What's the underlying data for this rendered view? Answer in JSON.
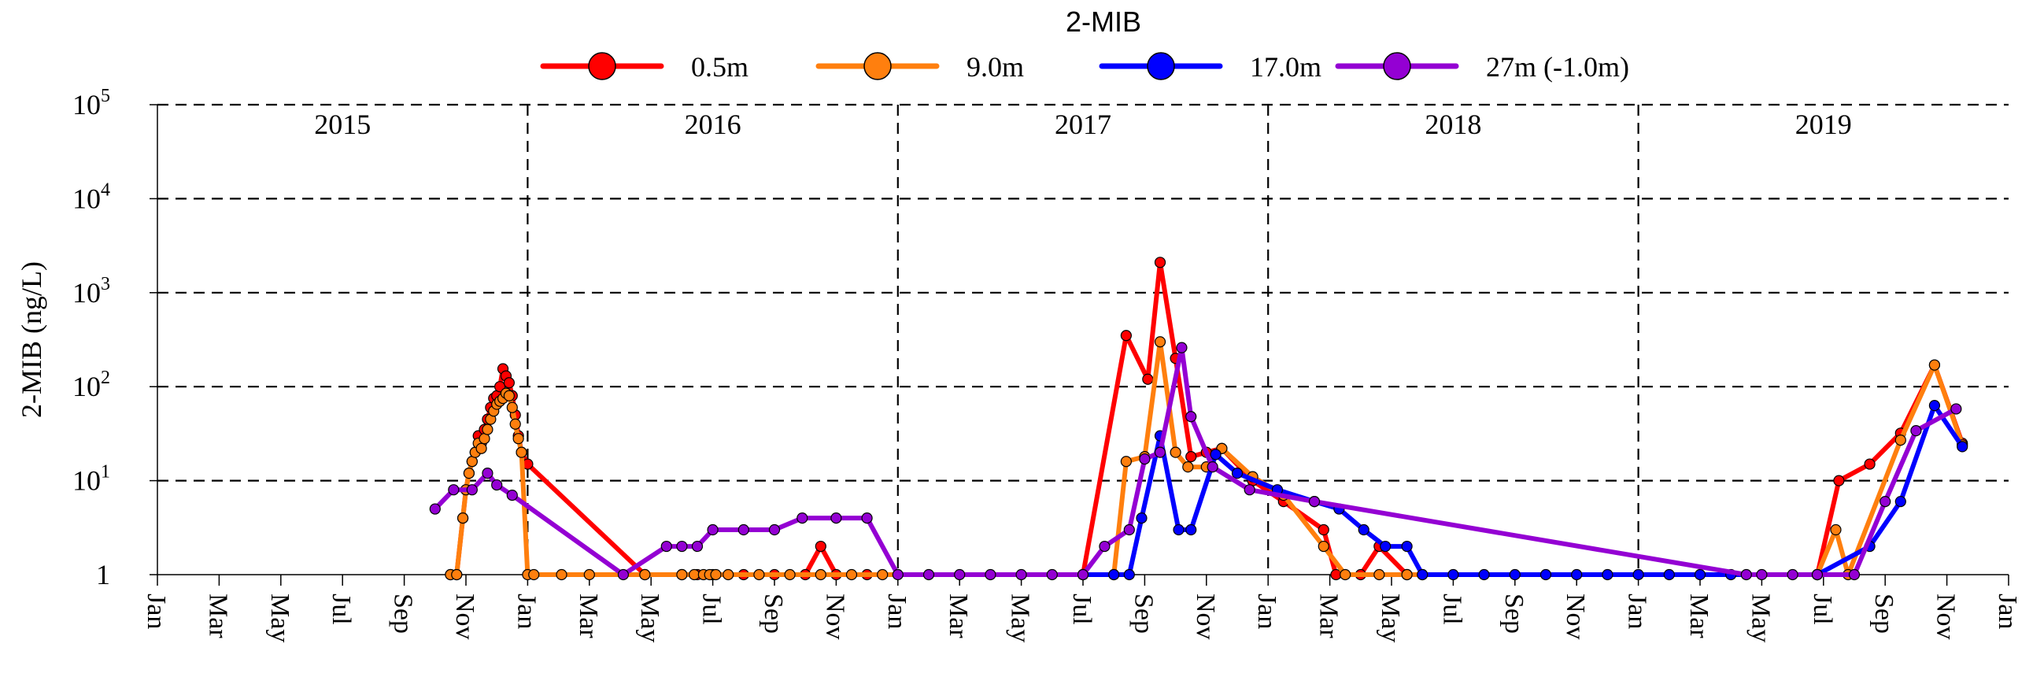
{
  "chart_data": {
    "type": "line",
    "title": "2-MIB",
    "xlabel": "",
    "ylabel": "2-MIB (ng/L)",
    "yscale": "log",
    "ylim": [
      1,
      100000
    ],
    "xlim_months": [
      0,
      60
    ],
    "x_unit": "months since Jan 2015",
    "y_ticks": [
      {
        "value": 1,
        "base": "1",
        "exp": ""
      },
      {
        "value": 10,
        "base": "10",
        "exp": "1"
      },
      {
        "value": 100,
        "base": "10",
        "exp": "2"
      },
      {
        "value": 1000,
        "base": "10",
        "exp": "3"
      },
      {
        "value": 10000,
        "base": "10",
        "exp": "4"
      },
      {
        "value": 100000,
        "base": "10",
        "exp": "5"
      }
    ],
    "x_tick_labels": [
      "Jan",
      "Mar",
      "May",
      "Jul",
      "Sep",
      "Nov",
      "Jan",
      "Mar",
      "May",
      "Jul",
      "Sep",
      "Nov",
      "Jan",
      "Mar",
      "May",
      "Jul",
      "Sep",
      "Nov",
      "Jan",
      "Mar",
      "May",
      "Jul",
      "Sep",
      "Nov",
      "Jan",
      "Mar",
      "May",
      "Jul",
      "Sep",
      "Nov",
      "Jan"
    ],
    "year_labels": [
      "2015",
      "2016",
      "2017",
      "2018",
      "2019"
    ],
    "year_boundaries": [
      12,
      24,
      36,
      48
    ],
    "grid": "dashed horizontal at decades, dashed vertical at year boundaries",
    "legend_position": "top-center",
    "series": [
      {
        "name": "0.5m",
        "color": "#ff0000",
        "points": [
          [
            9.5,
            1
          ],
          [
            9.7,
            1
          ],
          [
            9.9,
            4
          ],
          [
            10.0,
            8
          ],
          [
            10.1,
            12
          ],
          [
            10.2,
            16
          ],
          [
            10.3,
            20
          ],
          [
            10.4,
            30
          ],
          [
            10.5,
            25
          ],
          [
            10.6,
            35
          ],
          [
            10.7,
            45
          ],
          [
            10.8,
            60
          ],
          [
            10.9,
            75
          ],
          [
            11.0,
            80
          ],
          [
            11.1,
            100
          ],
          [
            11.2,
            155
          ],
          [
            11.3,
            130
          ],
          [
            11.4,
            110
          ],
          [
            11.5,
            80
          ],
          [
            11.6,
            50
          ],
          [
            11.7,
            30
          ],
          [
            11.8,
            20
          ],
          [
            12.0,
            15
          ],
          [
            15.8,
            1
          ],
          [
            17.0,
            1
          ],
          [
            17.5,
            1
          ],
          [
            18.0,
            1
          ],
          [
            19.0,
            1
          ],
          [
            20.0,
            1
          ],
          [
            21.0,
            1
          ],
          [
            21.5,
            2
          ],
          [
            22.0,
            1
          ],
          [
            23.0,
            1
          ],
          [
            30.0,
            1
          ],
          [
            31.4,
            350
          ],
          [
            32.1,
            120
          ],
          [
            32.5,
            2100
          ],
          [
            33.0,
            200
          ],
          [
            33.5,
            18
          ],
          [
            34.0,
            20
          ],
          [
            34.5,
            22
          ],
          [
            35.5,
            10
          ],
          [
            36.5,
            6
          ],
          [
            37.8,
            3
          ],
          [
            38.2,
            1
          ],
          [
            39.0,
            1
          ],
          [
            39.6,
            2
          ],
          [
            40.5,
            1
          ],
          [
            41.0,
            1
          ],
          [
            53.8,
            1
          ],
          [
            54.5,
            10
          ],
          [
            55.5,
            15
          ],
          [
            56.5,
            32
          ],
          [
            57.6,
            170
          ],
          [
            58.5,
            25
          ]
        ]
      },
      {
        "name": "9.0m",
        "color": "#ff7f0e",
        "points": [
          [
            9.5,
            1
          ],
          [
            9.7,
            1
          ],
          [
            9.9,
            4
          ],
          [
            10.0,
            8
          ],
          [
            10.1,
            12
          ],
          [
            10.2,
            16
          ],
          [
            10.3,
            20
          ],
          [
            10.4,
            25
          ],
          [
            10.5,
            22
          ],
          [
            10.6,
            28
          ],
          [
            10.7,
            35
          ],
          [
            10.8,
            45
          ],
          [
            10.9,
            55
          ],
          [
            11.0,
            65
          ],
          [
            11.1,
            70
          ],
          [
            11.2,
            75
          ],
          [
            11.3,
            85
          ],
          [
            11.4,
            80
          ],
          [
            11.5,
            60
          ],
          [
            11.6,
            40
          ],
          [
            11.7,
            28
          ],
          [
            11.8,
            20
          ],
          [
            12.0,
            1
          ],
          [
            12.2,
            1
          ],
          [
            13.1,
            1
          ],
          [
            14.0,
            1
          ],
          [
            15.8,
            1
          ],
          [
            17.0,
            1
          ],
          [
            17.4,
            1
          ],
          [
            17.7,
            1
          ],
          [
            17.9,
            1
          ],
          [
            18.1,
            1
          ],
          [
            18.5,
            1
          ],
          [
            19.5,
            1
          ],
          [
            20.5,
            1
          ],
          [
            21.5,
            1
          ],
          [
            22.5,
            1
          ],
          [
            23.5,
            1
          ],
          [
            30.0,
            1
          ],
          [
            31.0,
            1
          ],
          [
            31.4,
            16
          ],
          [
            32.0,
            18
          ],
          [
            32.5,
            300
          ],
          [
            33.0,
            20
          ],
          [
            33.4,
            14
          ],
          [
            34.0,
            14
          ],
          [
            34.5,
            22
          ],
          [
            35.5,
            11
          ],
          [
            36.5,
            7
          ],
          [
            37.8,
            2
          ],
          [
            38.5,
            1
          ],
          [
            39.6,
            1
          ],
          [
            40.5,
            1
          ],
          [
            53.8,
            1
          ],
          [
            54.4,
            3
          ],
          [
            54.8,
            1
          ],
          [
            56.5,
            27
          ],
          [
            57.6,
            170
          ],
          [
            58.5,
            24
          ]
        ]
      },
      {
        "name": "17.0m",
        "color": "#0000ff",
        "points": [
          [
            30.0,
            1
          ],
          [
            31.0,
            1
          ],
          [
            31.5,
            1
          ],
          [
            31.9,
            4
          ],
          [
            32.5,
            30
          ],
          [
            33.1,
            3
          ],
          [
            33.5,
            3
          ],
          [
            34.3,
            19
          ],
          [
            35.0,
            12
          ],
          [
            36.3,
            8
          ],
          [
            37.5,
            6
          ],
          [
            38.3,
            5
          ],
          [
            39.1,
            3
          ],
          [
            39.8,
            2
          ],
          [
            40.5,
            2
          ],
          [
            41.0,
            1
          ],
          [
            42.0,
            1
          ],
          [
            43.0,
            1
          ],
          [
            44.0,
            1
          ],
          [
            45.0,
            1
          ],
          [
            46.0,
            1
          ],
          [
            47.0,
            1
          ],
          [
            48.0,
            1
          ],
          [
            49.0,
            1
          ],
          [
            50.0,
            1
          ],
          [
            51.0,
            1
          ],
          [
            53.8,
            1
          ],
          [
            55.5,
            2
          ],
          [
            56.5,
            6
          ],
          [
            57.6,
            63
          ],
          [
            58.5,
            23
          ]
        ]
      },
      {
        "name": "27m (-1.0m)",
        "color": "#9400d3",
        "points": [
          [
            9.0,
            5
          ],
          [
            9.6,
            8
          ],
          [
            10.2,
            8
          ],
          [
            10.7,
            12
          ],
          [
            11.0,
            9
          ],
          [
            11.5,
            7
          ],
          [
            15.1,
            1
          ],
          [
            16.5,
            2
          ],
          [
            17.0,
            2
          ],
          [
            17.5,
            2
          ],
          [
            18.0,
            3
          ],
          [
            19.0,
            3
          ],
          [
            20.0,
            3
          ],
          [
            20.9,
            4
          ],
          [
            22.0,
            4
          ],
          [
            23.0,
            4
          ],
          [
            24.0,
            1
          ],
          [
            25.0,
            1
          ],
          [
            26.0,
            1
          ],
          [
            27.0,
            1
          ],
          [
            28.0,
            1
          ],
          [
            29.0,
            1
          ],
          [
            30.0,
            1
          ],
          [
            30.7,
            2
          ],
          [
            31.5,
            3
          ],
          [
            32.0,
            17
          ],
          [
            32.5,
            20
          ],
          [
            33.2,
            260
          ],
          [
            33.5,
            48
          ],
          [
            34.2,
            14
          ],
          [
            35.4,
            8
          ],
          [
            37.5,
            6
          ],
          [
            51.5,
            1
          ],
          [
            52.0,
            1
          ],
          [
            53.0,
            1
          ],
          [
            53.8,
            1
          ],
          [
            55.0,
            1
          ],
          [
            56.0,
            6
          ],
          [
            57.0,
            34
          ],
          [
            58.3,
            58
          ]
        ]
      }
    ]
  }
}
